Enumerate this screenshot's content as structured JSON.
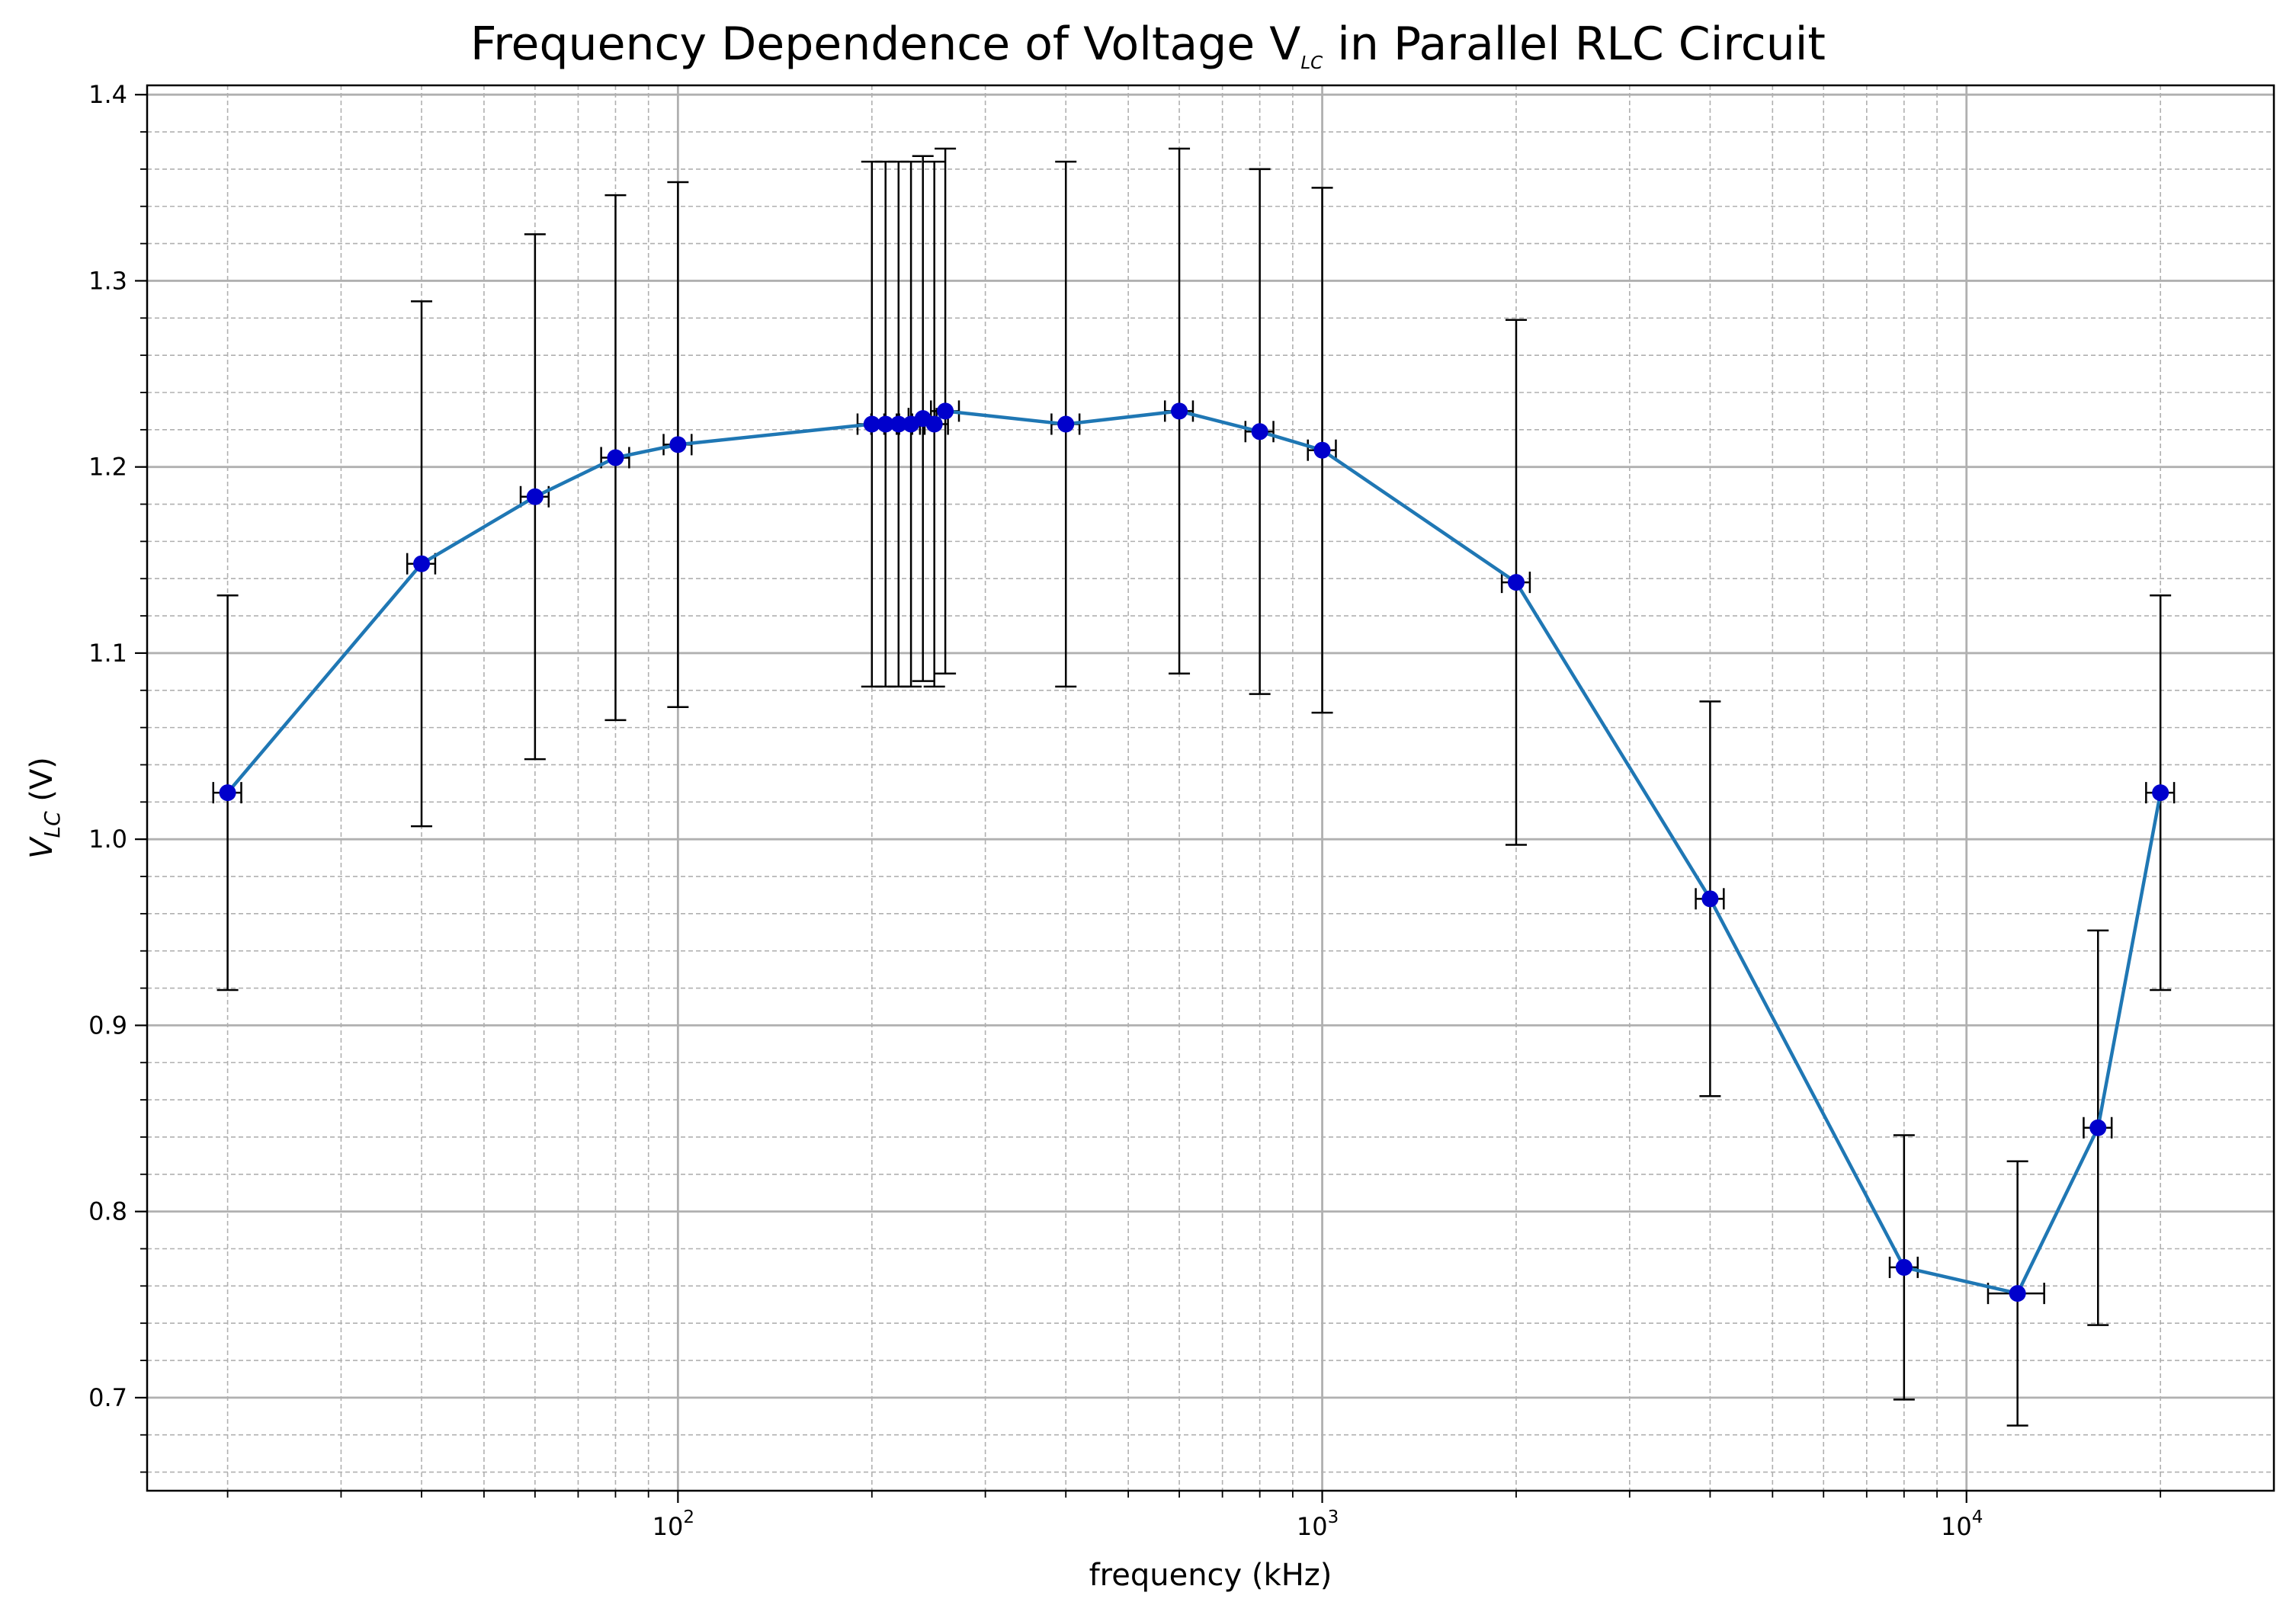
{
  "chart_data": {
    "type": "scatter",
    "title": "Frequency Dependence of Voltage V",
    "title_sub": "LC",
    "title_suffix": " in Parallel RLC Circuit",
    "xlabel": "frequency (kHz)",
    "ylabel_main": "V",
    "ylabel_sub": "LC",
    "ylabel_suffix": " (V)",
    "xscale": "log",
    "xlim": [
      15,
      30000
    ],
    "ylim": [
      0.65,
      1.405
    ],
    "x_ticks": [
      {
        "value": 100,
        "base": "10",
        "exp": "2"
      },
      {
        "value": 1000,
        "base": "10",
        "exp": "3"
      },
      {
        "value": 10000,
        "base": "10",
        "exp": "4"
      }
    ],
    "y_ticks": [
      0.7,
      0.8,
      0.9,
      1.0,
      1.1,
      1.2,
      1.3,
      1.4
    ],
    "y_tick_labels": [
      "0.7",
      "0.8",
      "0.9",
      "1.0",
      "1.1",
      "1.2",
      "1.3",
      "1.4"
    ],
    "grid": {
      "major": true,
      "minor": true
    },
    "series": [
      {
        "line_color": "#1f77b4",
        "marker_color": "#0000cc",
        "errorbar_color": "#000000",
        "points": [
          {
            "x": 20,
            "y": 1.025,
            "yerr": 0.106,
            "xerr": 1
          },
          {
            "x": 40,
            "y": 1.148,
            "yerr": 0.141,
            "xerr": 2
          },
          {
            "x": 60,
            "y": 1.184,
            "yerr": 0.141,
            "xerr": 3
          },
          {
            "x": 80,
            "y": 1.205,
            "yerr": 0.141,
            "xerr": 4
          },
          {
            "x": 100,
            "y": 1.212,
            "yerr": 0.141,
            "xerr": 5
          },
          {
            "x": 200,
            "y": 1.223,
            "yerr": 0.141,
            "xerr": 10
          },
          {
            "x": 210,
            "y": 1.223,
            "yerr": 0.141,
            "xerr": 10.5
          },
          {
            "x": 220,
            "y": 1.223,
            "yerr": 0.141,
            "xerr": 11
          },
          {
            "x": 230,
            "y": 1.223,
            "yerr": 0.141,
            "xerr": 11.5
          },
          {
            "x": 240,
            "y": 1.226,
            "yerr": 0.141,
            "xerr": 12
          },
          {
            "x": 250,
            "y": 1.223,
            "yerr": 0.141,
            "xerr": 12.5
          },
          {
            "x": 260,
            "y": 1.23,
            "yerr": 0.141,
            "xerr": 13
          },
          {
            "x": 400,
            "y": 1.223,
            "yerr": 0.141,
            "xerr": 20
          },
          {
            "x": 600,
            "y": 1.23,
            "yerr": 0.141,
            "xerr": 30
          },
          {
            "x": 800,
            "y": 1.219,
            "yerr": 0.141,
            "xerr": 40
          },
          {
            "x": 1000,
            "y": 1.209,
            "yerr": 0.141,
            "xerr": 50
          },
          {
            "x": 2000,
            "y": 1.138,
            "yerr": 0.141,
            "xerr": 100
          },
          {
            "x": 4000,
            "y": 0.968,
            "yerr": 0.106,
            "xerr": 200
          },
          {
            "x": 8000,
            "y": 0.77,
            "yerr": 0.071,
            "xerr": 400
          },
          {
            "x": 12000,
            "y": 0.756,
            "yerr": 0.071,
            "xerr": 1200
          },
          {
            "x": 16000,
            "y": 0.845,
            "yerr": 0.106,
            "xerr": 800
          },
          {
            "x": 20000,
            "y": 1.025,
            "yerr": 0.106,
            "xerr": 1000
          }
        ]
      }
    ]
  }
}
